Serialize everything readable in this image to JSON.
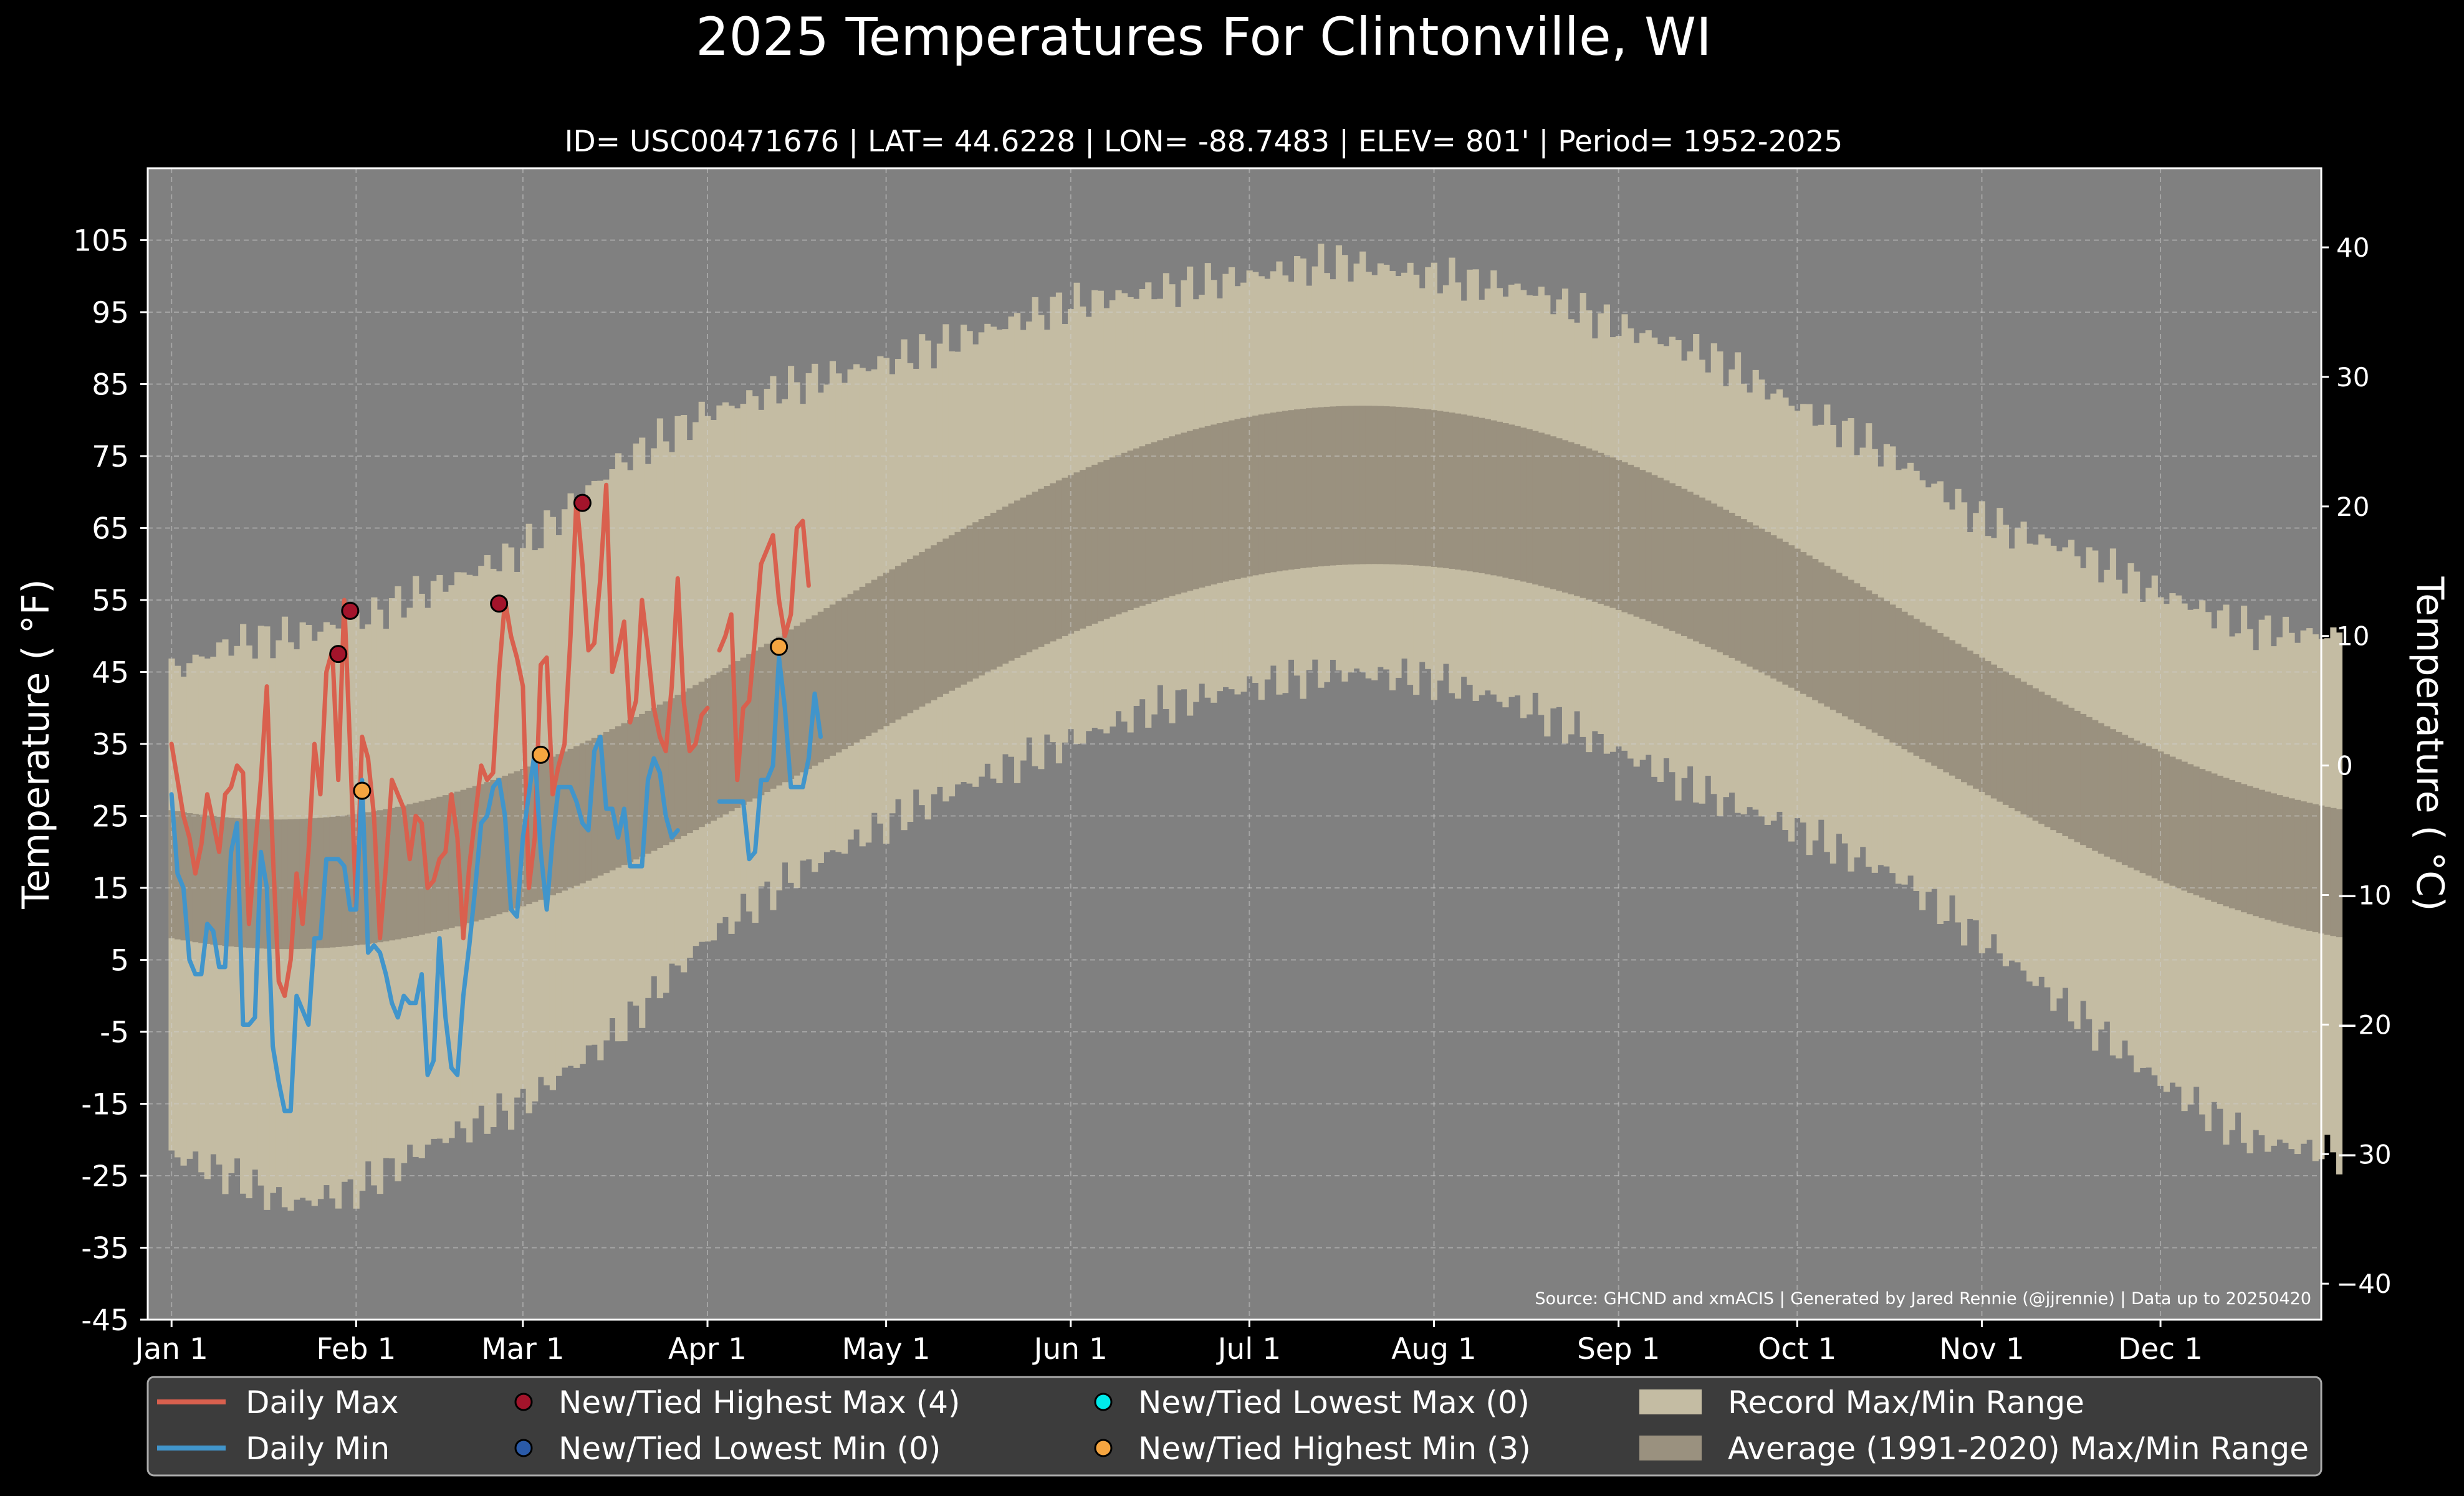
{
  "chart_data": {
    "type": "line",
    "title": "2025 Temperatures For Clintonville, WI",
    "subtitle": "ID= USC00471676 | LAT= 44.6228 | LON= -88.7483 | ELEV= 801' | Period= 1952-2025",
    "ylabel": "Temperature ( $^\\circ$F)",
    "ylabel_display": "Temperature ( °F)",
    "ylabel_right": "Temperature ( °C)",
    "source": "Source: GHCND and xmACIS | Generated by Jared Rennie (@jjrennie) | Data up to 20250420",
    "ylim": [
      -45,
      115
    ],
    "ylim_c": [
      -42.78,
      46.11
    ],
    "yticks": [
      105,
      95,
      85,
      75,
      65,
      55,
      45,
      35,
      25,
      15,
      5,
      -5,
      -15,
      -25,
      -35,
      -45
    ],
    "yticks_c": [
      40,
      30,
      20,
      10,
      0,
      -10,
      -20,
      -30,
      -40
    ],
    "xlim_days": [
      -4,
      361
    ],
    "xticks": [
      {
        "label": "Jan 1",
        "day": 0
      },
      {
        "label": "Feb 1",
        "day": 31
      },
      {
        "label": "Mar 1",
        "day": 59
      },
      {
        "label": "Apr 1",
        "day": 90
      },
      {
        "label": "May 1",
        "day": 120
      },
      {
        "label": "Jun 1",
        "day": 151
      },
      {
        "label": "Jul 1",
        "day": 181
      },
      {
        "label": "Aug 1",
        "day": 212
      },
      {
        "label": "Sep 1",
        "day": 243
      },
      {
        "label": "Oct 1",
        "day": 273
      },
      {
        "label": "Nov 1",
        "day": 304
      },
      {
        "label": "Dec 1",
        "day": 334
      }
    ],
    "grid": true,
    "colors": {
      "background": "#000000",
      "plot_bg": "#808080",
      "record_range": "#c4bca3",
      "normal_range": "#9a917f",
      "daily_max": "#d9604e",
      "daily_min": "#4195cb",
      "new_high_max": "#a3142b",
      "new_low_min": "#2a5aa8",
      "new_low_max": "#00eaea",
      "new_high_min": "#f5a540"
    },
    "record_max_knots": [
      [
        0,
        45
      ],
      [
        10,
        49
      ],
      [
        20,
        50
      ],
      [
        31,
        52
      ],
      [
        45,
        57
      ],
      [
        59,
        62
      ],
      [
        75,
        74
      ],
      [
        90,
        81
      ],
      [
        105,
        85
      ],
      [
        120,
        88
      ],
      [
        135,
        92
      ],
      [
        150,
        96
      ],
      [
        165,
        98
      ],
      [
        181,
        100
      ],
      [
        196,
        102
      ],
      [
        212,
        100
      ],
      [
        228,
        98
      ],
      [
        243,
        93
      ],
      [
        258,
        89
      ],
      [
        273,
        82
      ],
      [
        289,
        75
      ],
      [
        304,
        66
      ],
      [
        319,
        62
      ],
      [
        334,
        56
      ],
      [
        349,
        51
      ],
      [
        364,
        50
      ]
    ],
    "record_min_knots": [
      [
        0,
        -22
      ],
      [
        10,
        -25
      ],
      [
        20,
        -29
      ],
      [
        31,
        -27
      ],
      [
        45,
        -20
      ],
      [
        59,
        -15
      ],
      [
        75,
        -5
      ],
      [
        90,
        8
      ],
      [
        105,
        17
      ],
      [
        120,
        24
      ],
      [
        135,
        30
      ],
      [
        150,
        35
      ],
      [
        165,
        40
      ],
      [
        181,
        43
      ],
      [
        196,
        45
      ],
      [
        212,
        44
      ],
      [
        228,
        40
      ],
      [
        243,
        34
      ],
      [
        258,
        28
      ],
      [
        273,
        23
      ],
      [
        289,
        17
      ],
      [
        304,
        8
      ],
      [
        319,
        -2
      ],
      [
        334,
        -12
      ],
      [
        349,
        -20
      ],
      [
        364,
        -22
      ]
    ],
    "normal_max": {
      "min": 24.5,
      "max": 82,
      "peak_day": 200
    },
    "normal_min": {
      "min": 6.5,
      "max": 60,
      "peak_day": 202
    },
    "series": [
      {
        "name": "Daily Max",
        "values": [
          35,
          30,
          25,
          22,
          17,
          21,
          28,
          24,
          20,
          28,
          29,
          32,
          31,
          10,
          20,
          30,
          43,
          20,
          2,
          0,
          5,
          17,
          10,
          20,
          35,
          28,
          45,
          48,
          30,
          55,
          34,
          12,
          36,
          33,
          25,
          8,
          18,
          30,
          28,
          26,
          19,
          25,
          24,
          15,
          16,
          19,
          20,
          28,
          22,
          8,
          18,
          25,
          32,
          30,
          31,
          45,
          55,
          50,
          47,
          43,
          15,
          22,
          46,
          47,
          28,
          32,
          35,
          50,
          69,
          60,
          48,
          49,
          58,
          71,
          45,
          48,
          52,
          38,
          41,
          55,
          48,
          40,
          36,
          34,
          43,
          58,
          41,
          34,
          35,
          39,
          40,
          null,
          48,
          50,
          53,
          30,
          40,
          41,
          50,
          60,
          62,
          64,
          55,
          50,
          53,
          65,
          66,
          57
        ],
        "start_day": 0
      },
      {
        "name": "Daily Min",
        "values": [
          28,
          17,
          15,
          5,
          3,
          3,
          10,
          9,
          4,
          4,
          20,
          24,
          -4,
          -4,
          -3,
          20,
          15,
          -7,
          -12,
          -16,
          -16,
          0,
          -2,
          -4,
          8,
          8,
          19,
          19,
          19,
          18,
          12,
          12,
          30,
          6,
          7,
          6,
          3,
          -1,
          -3,
          0,
          -1,
          -1,
          3,
          -11,
          -9,
          8,
          -3,
          -10,
          -11,
          0,
          7,
          15,
          24,
          25,
          29,
          30,
          25,
          12,
          11,
          22,
          28,
          34,
          20,
          12,
          22,
          29,
          29,
          29,
          27,
          24,
          23,
          34,
          36,
          26,
          26,
          22,
          26,
          18,
          18,
          18,
          30,
          33,
          31,
          25,
          22,
          23
        ],
        "start_day": 0
      },
      {
        "name": "Daily Min (cont.)",
        "values": [
          27,
          27,
          27,
          27,
          27,
          19,
          20,
          30,
          30,
          32,
          47,
          40,
          29,
          29,
          29,
          33,
          42,
          36
        ],
        "start_day": 92
      }
    ],
    "markers": {
      "new_high_max": [
        [
          28,
          47.5
        ],
        [
          30,
          53.5
        ],
        [
          55,
          54.5
        ],
        [
          69,
          68.5
        ]
      ],
      "new_high_min": [
        [
          32,
          28.5
        ],
        [
          62,
          33.5
        ],
        [
          102,
          48.5
        ]
      ],
      "new_low_max": [],
      "new_low_min": []
    },
    "legend": {
      "placement": "bottom",
      "entries": [
        {
          "label": "Daily Max",
          "kind": "line",
          "color": "#d9604e"
        },
        {
          "label": "Daily Min",
          "kind": "line",
          "color": "#4195cb"
        },
        {
          "label": "New/Tied Highest Max (4)",
          "kind": "dot",
          "color": "#a3142b"
        },
        {
          "label": "New/Tied Lowest Min (0)",
          "kind": "dot",
          "color": "#2a5aa8"
        },
        {
          "label": "New/Tied Lowest Max (0)",
          "kind": "dot",
          "color": "#00eaea"
        },
        {
          "label": "New/Tied Highest Min (3)",
          "kind": "dot",
          "color": "#f5a540"
        },
        {
          "label": "Record Max/Min Range",
          "kind": "patch",
          "color": "#c4bca3"
        },
        {
          "label": "Average (1991-2020) Max/Min Range",
          "kind": "patch",
          "color": "#9a917f"
        }
      ]
    }
  }
}
